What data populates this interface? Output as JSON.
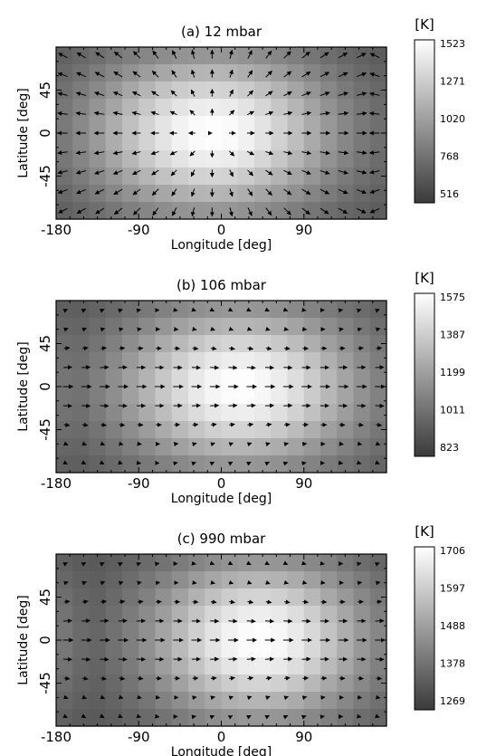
{
  "chart_data": [
    {
      "type": "heatmap",
      "title": "(a) 12 mbar",
      "xlabel": "Longitude [deg]",
      "ylabel": "Latitude [deg]",
      "xlim": [
        -180,
        180
      ],
      "ylim": [
        -90,
        90
      ],
      "xticks": [
        "-180",
        "-90",
        "0",
        "90"
      ],
      "yticks": [
        "45",
        "0",
        "-45"
      ],
      "colorbar": {
        "unit": "[K]",
        "ticks": [
          "1523",
          "1271",
          "1020",
          "768",
          "516"
        ],
        "min": 516,
        "max": 1523
      },
      "hotspot": {
        "lon": -10,
        "lat": 0
      },
      "hot_width": 95,
      "wind": "divergent"
    },
    {
      "type": "heatmap",
      "title": "(b) 106 mbar",
      "xlabel": "Longitude [deg]",
      "ylabel": "Latitude [deg]",
      "xlim": [
        -180,
        180
      ],
      "ylim": [
        -90,
        90
      ],
      "xticks": [
        "-180",
        "-90",
        "0",
        "90"
      ],
      "yticks": [
        "45",
        "0",
        "-45"
      ],
      "colorbar": {
        "unit": "[K]",
        "ticks": [
          "1575",
          "1387",
          "1199",
          "1011",
          "823"
        ],
        "min": 823,
        "max": 1575
      },
      "hotspot": {
        "lon": 20,
        "lat": 0
      },
      "hot_width": 95,
      "wind": "jet"
    },
    {
      "type": "heatmap",
      "title": "(c) 990 mbar",
      "xlabel": "Longitude [deg]",
      "ylabel": "Latitude [deg]",
      "xlim": [
        -180,
        180
      ],
      "ylim": [
        -90,
        90
      ],
      "xticks": [
        "-180",
        "-90",
        "0",
        "90"
      ],
      "yticks": [
        "45",
        "0",
        "-45"
      ],
      "colorbar": {
        "unit": "[K]",
        "ticks": [
          "1706",
          "1597",
          "1488",
          "1378",
          "1269"
        ],
        "min": 1269,
        "max": 1706
      },
      "hotspot": {
        "lon": 40,
        "lat": 0
      },
      "hot_width": 85,
      "wind": "jet"
    }
  ],
  "colors": {
    "cold": "#3a3a3a",
    "hot": "#ffffff",
    "axis": "#000000"
  }
}
